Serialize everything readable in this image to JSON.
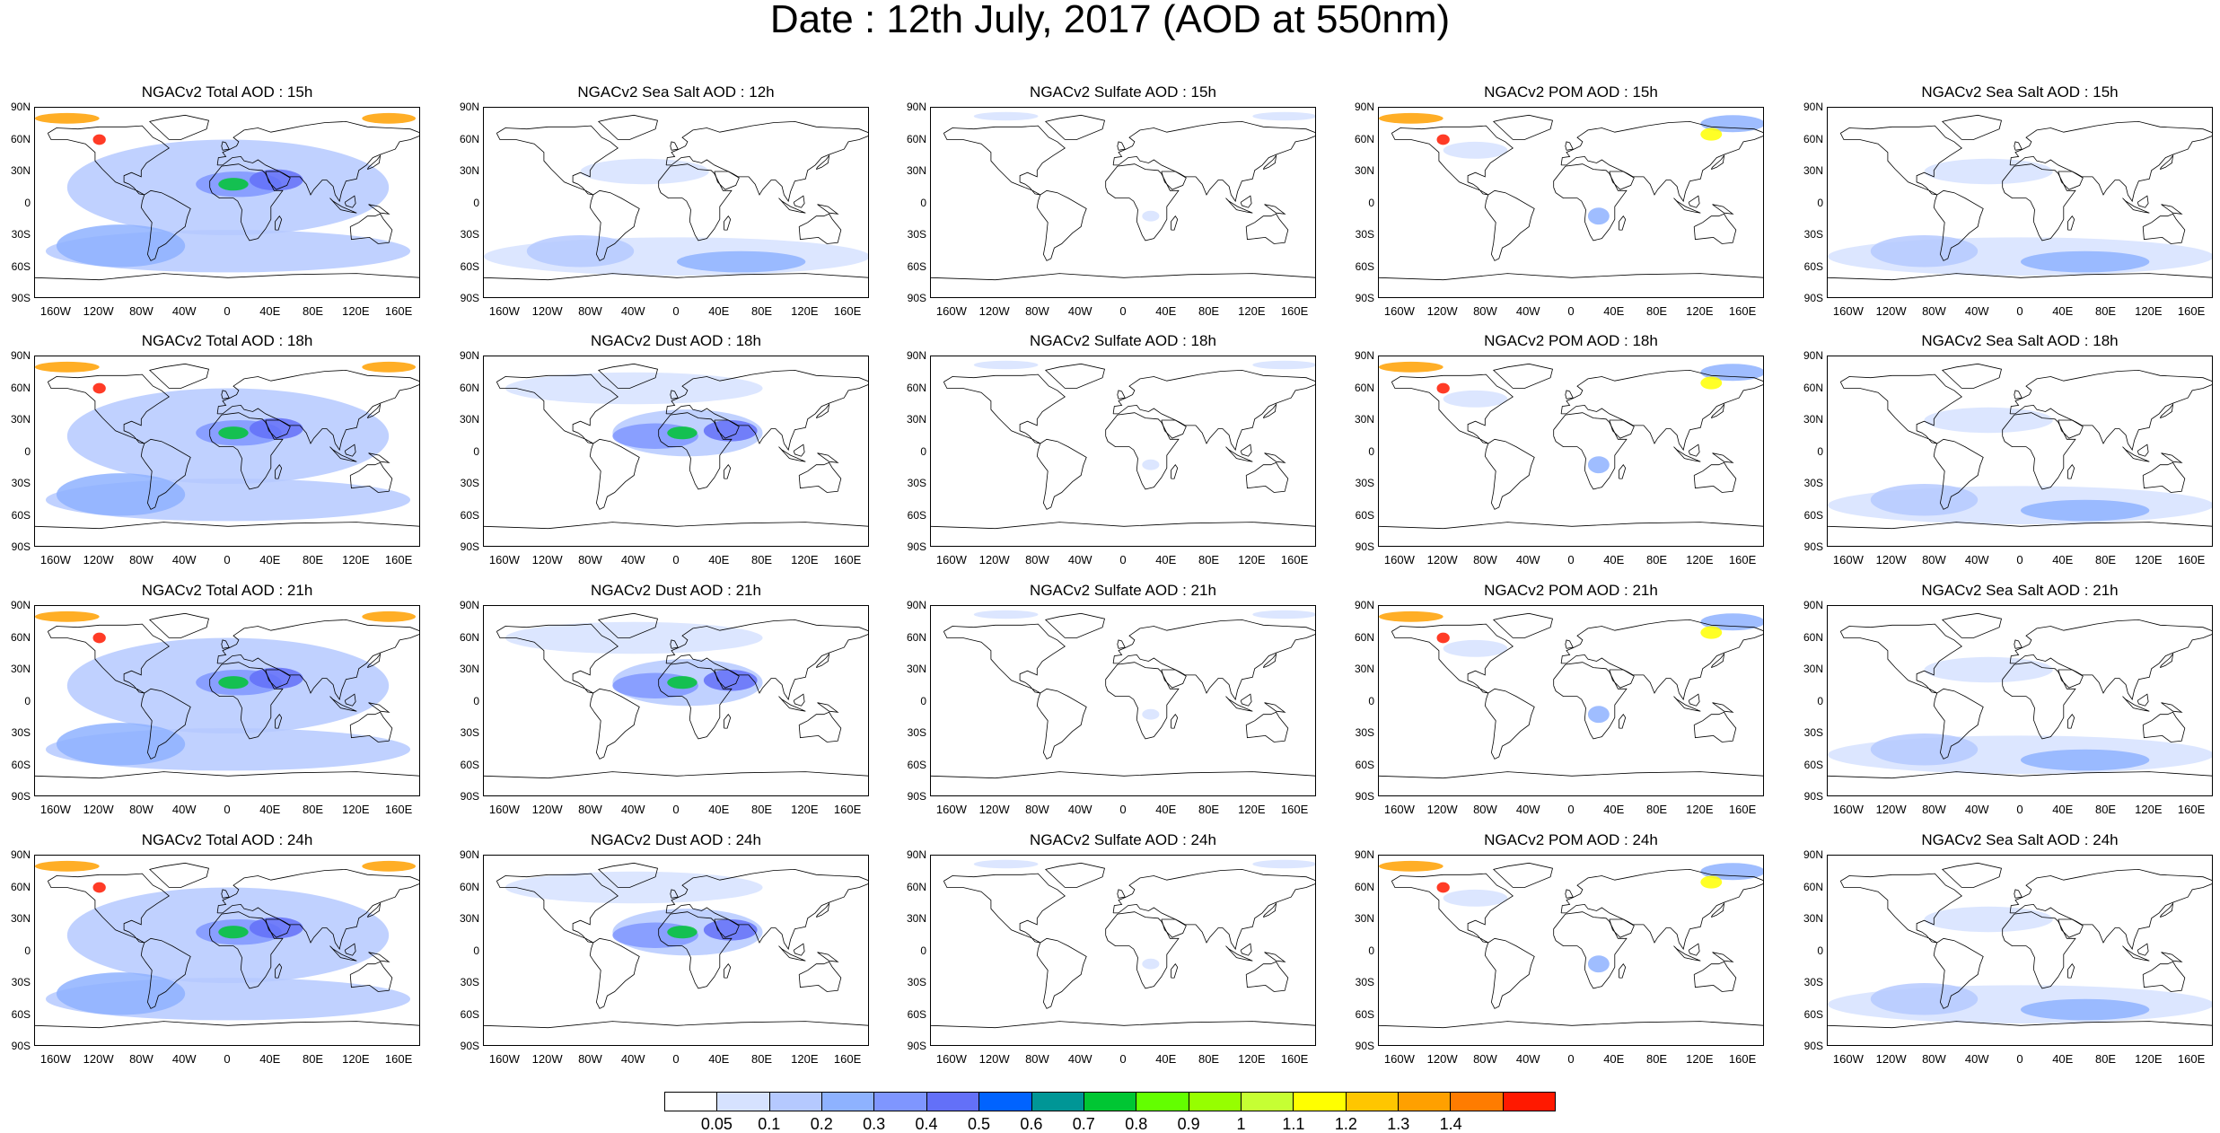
{
  "title": "Date : 12th July, 2017 (AOD at 550nm)",
  "panels": [
    [
      "NGACv2 Total AOD : 15h",
      "NGACv2 Sea Salt  AOD : 12h",
      "NGACv2 Sulfate AOD : 15h",
      "NGACv2 POM AOD : 15h",
      "NGACv2 Sea Salt AOD : 15h"
    ],
    [
      "NGACv2 Total AOD : 18h",
      "NGACv2 Dust AOD : 18h",
      "NGACv2 Sulfate AOD : 18h",
      "NGACv2 POM AOD : 18h",
      "NGACv2 Sea Salt AOD : 18h"
    ],
    [
      "NGACv2 Total AOD : 21h",
      "NGACv2 Dust AOD : 21h",
      "NGACv2 Sulfate AOD : 21h",
      "NGACv2 POM AOD : 21h",
      "NGACv2 Sea Salt AOD : 21h"
    ],
    [
      "NGACv2 Total AOD : 24h",
      "NGACv2 Dust AOD : 24h",
      "NGACv2 Sulfate AOD : 24h",
      "NGACv2 POM AOD : 24h",
      "NGACv2 Sea Salt  AOD : 24h"
    ]
  ],
  "lat_ticks": [
    "90N",
    "60N",
    "30N",
    "0",
    "30S",
    "60S",
    "90S"
  ],
  "lon_ticks": [
    "160W",
    "120W",
    "80W",
    "40W",
    "0",
    "40E",
    "80E",
    "120E",
    "160E"
  ],
  "colorbar": {
    "labels": [
      "0.05",
      "0.1",
      "0.2",
      "0.3",
      "0.4",
      "0.5",
      "0.6",
      "0.7",
      "0.8",
      "0.9",
      "1",
      "1.1",
      "1.2",
      "1.3",
      "1.4"
    ],
    "colors": [
      "#ffffff",
      "#d6e2ff",
      "#b5c9ff",
      "#8eb2ff",
      "#7f96ff",
      "#6370f8",
      "#0063ff",
      "#009696",
      "#00c633",
      "#63ff00",
      "#96ff00",
      "#c6ff33",
      "#ffff00",
      "#ffc600",
      "#ffa000",
      "#ff7c00",
      "#ff1900"
    ]
  }
}
